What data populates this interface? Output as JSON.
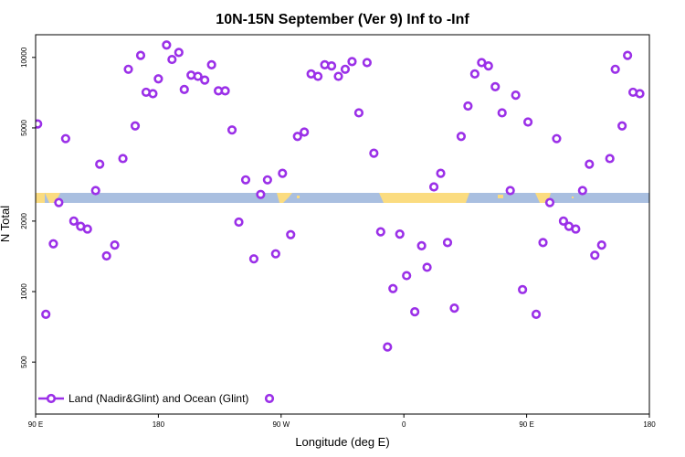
{
  "chart_data": {
    "type": "scatter",
    "title": "10N-15N September (Ver 9)   Inf to -Inf",
    "xlabel": "Longitude (deg E)",
    "ylabel": "N Total",
    "x_ticks": [
      {
        "value": 90,
        "label": "90 E"
      },
      {
        "value": 180,
        "label": "180"
      },
      {
        "value": 270,
        "label": "90 W"
      },
      {
        "value": 360,
        "label": "0"
      },
      {
        "value": 450,
        "label": "90 E"
      },
      {
        "value": 540,
        "label": "180"
      }
    ],
    "y_ticks": [
      {
        "value": 500,
        "label": "500"
      },
      {
        "value": 1000,
        "label": "1000"
      },
      {
        "value": 2000,
        "label": "2000"
      },
      {
        "value": 5000,
        "label": "5000"
      },
      {
        "value": 10000,
        "label": "10000"
      }
    ],
    "xlim": [
      90,
      540
    ],
    "y_scale": "log",
    "ylim": [
      300,
      12500
    ],
    "colors": {
      "series": "#9b30e8",
      "map_ocean": "#a9bfe0",
      "map_land": "#fbdc80"
    },
    "legend": {
      "position": "bottom-left",
      "label": "Land (Nadir&Glint) and Ocean (Glint)"
    },
    "series": [
      {
        "name": "Land (Nadir&Glint) and Ocean (Glint)",
        "points": [
          [
            91.5,
            5200
          ],
          [
            97.5,
            800
          ],
          [
            103,
            1600
          ],
          [
            107,
            2400
          ],
          [
            112,
            4500
          ],
          [
            118,
            2000
          ],
          [
            123,
            1900
          ],
          [
            128,
            1850
          ],
          [
            134,
            2700
          ],
          [
            137,
            3500
          ],
          [
            142,
            1420
          ],
          [
            148,
            1580
          ],
          [
            154,
            3700
          ],
          [
            158,
            8900
          ],
          [
            163,
            5100
          ],
          [
            167,
            10200
          ],
          [
            171,
            7100
          ],
          [
            176,
            7000
          ],
          [
            180,
            8100
          ],
          [
            186,
            11300
          ],
          [
            190,
            9800
          ],
          [
            195,
            10500
          ],
          [
            199,
            7300
          ],
          [
            204,
            8400
          ],
          [
            209,
            8300
          ],
          [
            214,
            8000
          ],
          [
            219,
            9300
          ],
          [
            224,
            7200
          ],
          [
            229,
            7200
          ],
          [
            234,
            4900
          ],
          [
            239,
            1980
          ],
          [
            244,
            3000
          ],
          [
            250,
            1380
          ],
          [
            255,
            2600
          ],
          [
            260,
            3000
          ],
          [
            266,
            1450
          ],
          [
            271,
            3200
          ],
          [
            277,
            1750
          ],
          [
            282,
            4600
          ],
          [
            287,
            4800
          ],
          [
            292,
            8500
          ],
          [
            297,
            8300
          ],
          [
            302,
            9300
          ],
          [
            307,
            9200
          ],
          [
            312,
            8300
          ],
          [
            317,
            8900
          ],
          [
            322,
            9600
          ],
          [
            327,
            5800
          ],
          [
            333,
            9500
          ],
          [
            338,
            3900
          ],
          [
            343,
            1800
          ],
          [
            348,
            580
          ],
          [
            352,
            1030
          ],
          [
            357,
            1760
          ],
          [
            362,
            1170
          ],
          [
            368,
            820
          ],
          [
            373,
            1570
          ],
          [
            377,
            1270
          ],
          [
            382,
            2800
          ],
          [
            387,
            3200
          ],
          [
            392,
            1620
          ],
          [
            397,
            850
          ],
          [
            402,
            4600
          ],
          [
            407,
            6200
          ],
          [
            412,
            8500
          ],
          [
            417,
            9500
          ],
          [
            422,
            9200
          ],
          [
            427,
            7500
          ],
          [
            432,
            5800
          ],
          [
            438,
            2700
          ],
          [
            442,
            6900
          ],
          [
            447,
            1020
          ],
          [
            451,
            5300
          ],
          [
            457,
            800
          ],
          [
            462,
            1620
          ],
          [
            467,
            2400
          ],
          [
            472,
            4500
          ],
          [
            477,
            2000
          ],
          [
            481,
            1900
          ],
          [
            486,
            1850
          ],
          [
            491,
            2700
          ],
          [
            496,
            3500
          ],
          [
            500,
            1430
          ],
          [
            505,
            1580
          ],
          [
            511,
            3700
          ],
          [
            515,
            8900
          ],
          [
            520,
            5100
          ],
          [
            524,
            10200
          ],
          [
            528,
            7100
          ],
          [
            533,
            7000
          ]
        ]
      }
    ]
  }
}
